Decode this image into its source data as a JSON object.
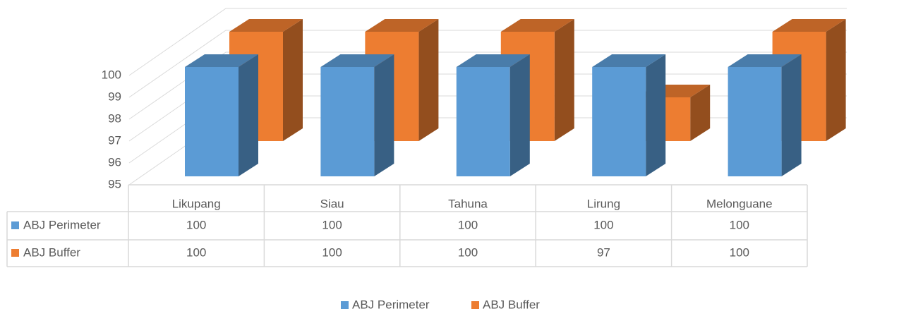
{
  "chart_data": {
    "type": "bar3d",
    "categories": [
      "Likupang",
      "Siau",
      "Tahuna",
      "Lirung",
      "Melonguane"
    ],
    "series": [
      {
        "name": "ABJ Perimeter",
        "color": "#5b9bd5",
        "values": [
          100,
          100,
          100,
          100,
          100
        ]
      },
      {
        "name": "ABJ Buffer",
        "color": "#ed7d31",
        "values": [
          100,
          100,
          100,
          97,
          100
        ]
      }
    ],
    "ylim": [
      95,
      100
    ],
    "yticks": [
      95,
      96,
      97,
      98,
      99,
      100
    ],
    "grid": true,
    "legend": "bottom",
    "data_table": true
  }
}
